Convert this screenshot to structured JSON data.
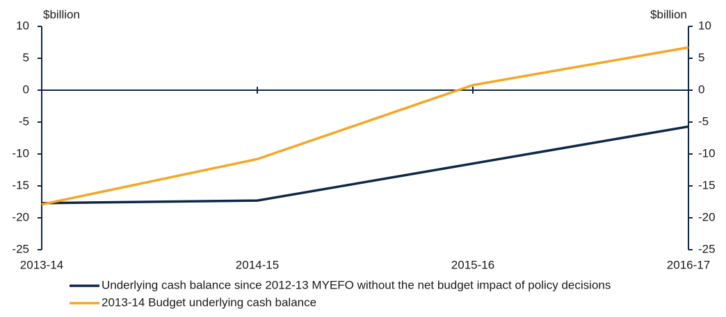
{
  "chart_data": {
    "type": "line",
    "y_unit_label": "$billion",
    "y2_unit_label": "$billion",
    "categories": [
      "2013-14",
      "2014-15",
      "2015-16",
      "2016-17"
    ],
    "series": [
      {
        "name": "Underlying cash balance since 2012-13 MYEFO without the net budget impact of policy decisions",
        "color": "#0d2748",
        "values": [
          -17.7,
          -17.3,
          -11.5,
          -5.7
        ]
      },
      {
        "name": "2013-14 Budget underlying cash balance",
        "color": "#f5a623",
        "values": [
          -17.9,
          -10.8,
          0.8,
          6.7
        ]
      }
    ],
    "ylim": [
      -25,
      10
    ],
    "yticks": [
      -25,
      -20,
      -15,
      -10,
      -5,
      0,
      5,
      10
    ],
    "y2lim": [
      -25,
      10
    ],
    "y2ticks": [
      -25,
      -20,
      -15,
      -10,
      -5,
      0,
      5,
      10
    ]
  }
}
